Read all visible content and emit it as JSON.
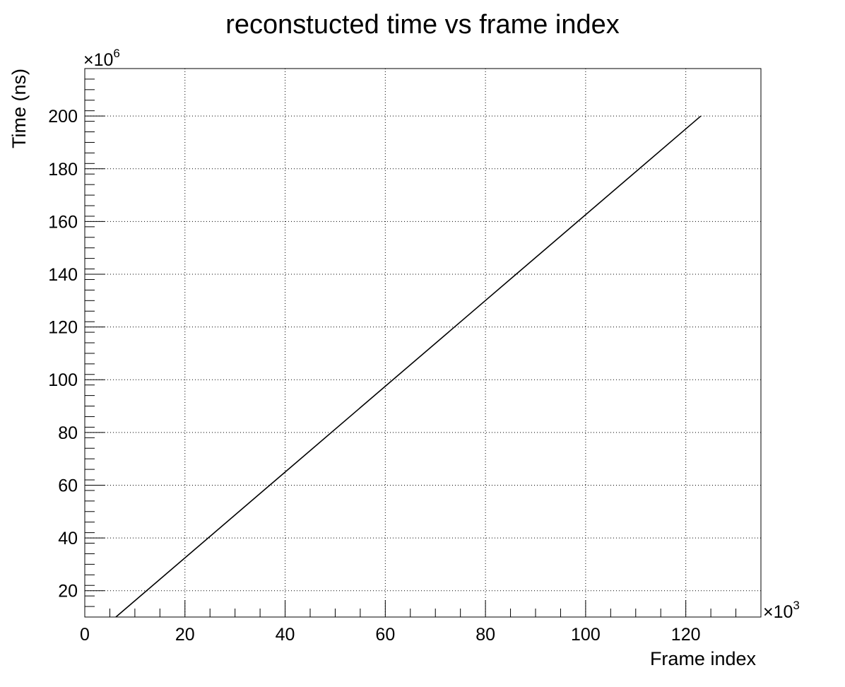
{
  "chart_data": {
    "type": "line",
    "title": "reconstucted time vs frame index",
    "xlabel": "Frame index",
    "ylabel": "Time (ns)",
    "x_multiplier": {
      "base": "×10",
      "exp": "3"
    },
    "y_multiplier": {
      "base": "×10",
      "exp": "6"
    },
    "xlim": [
      0,
      135
    ],
    "ylim": [
      10,
      218
    ],
    "x_ticks": [
      0,
      20,
      40,
      60,
      80,
      100,
      120
    ],
    "y_ticks": [
      20,
      40,
      60,
      80,
      100,
      120,
      140,
      160,
      180,
      200
    ],
    "grid": true,
    "series": [
      {
        "x": [
          6.2,
          123
        ],
        "y": [
          10,
          200
        ],
        "color": "#000000"
      }
    ]
  }
}
